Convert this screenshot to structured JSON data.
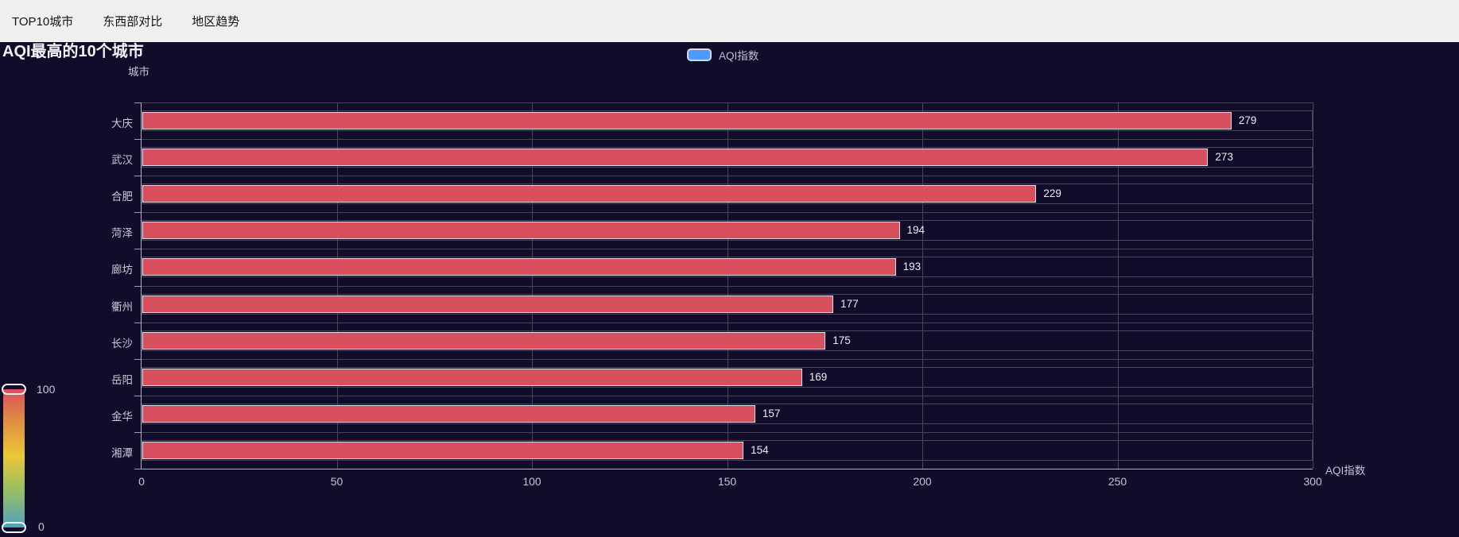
{
  "nav": {
    "tabs": [
      {
        "label": "TOP10城市"
      },
      {
        "label": "东西部对比"
      },
      {
        "label": "地区趋势"
      }
    ]
  },
  "chart_data": {
    "type": "bar",
    "orientation": "horizontal",
    "title": "AQI最高的10个城市",
    "legend": [
      {
        "label": "AQI指数"
      }
    ],
    "categories": [
      "大庆",
      "武汉",
      "合肥",
      "菏泽",
      "廊坊",
      "衢州",
      "长沙",
      "岳阳",
      "金华",
      "湘潭"
    ],
    "values": [
      279,
      273,
      229,
      194,
      193,
      177,
      175,
      169,
      157,
      154
    ],
    "xlabel": "AQI指数",
    "ylabel": "城市",
    "xlim": [
      0,
      300
    ],
    "x_ticks": [
      0,
      50,
      100,
      150,
      200,
      250,
      300
    ],
    "grid": true,
    "legend_position": "top-center",
    "value_labels_shown": true,
    "visual_map": {
      "max_label": "100",
      "min_label": "0",
      "gradient_colors": [
        "#d8505e",
        "#eac736",
        "#50a3ba"
      ],
      "orientation": "vertical",
      "position": "bottom-left"
    }
  },
  "colors": {
    "background": "#100C2A",
    "nav_background": "#efefee",
    "bar_fill": "#d8505e",
    "bar_border": "#dfdeeb",
    "legend_marker": "#4f9bfd",
    "grid_line": "#484753",
    "axis_line": "#aeadc2",
    "axis_text": "#c4c3d2",
    "value_text": "#ececf2",
    "title_text": "#f2f2f7"
  }
}
